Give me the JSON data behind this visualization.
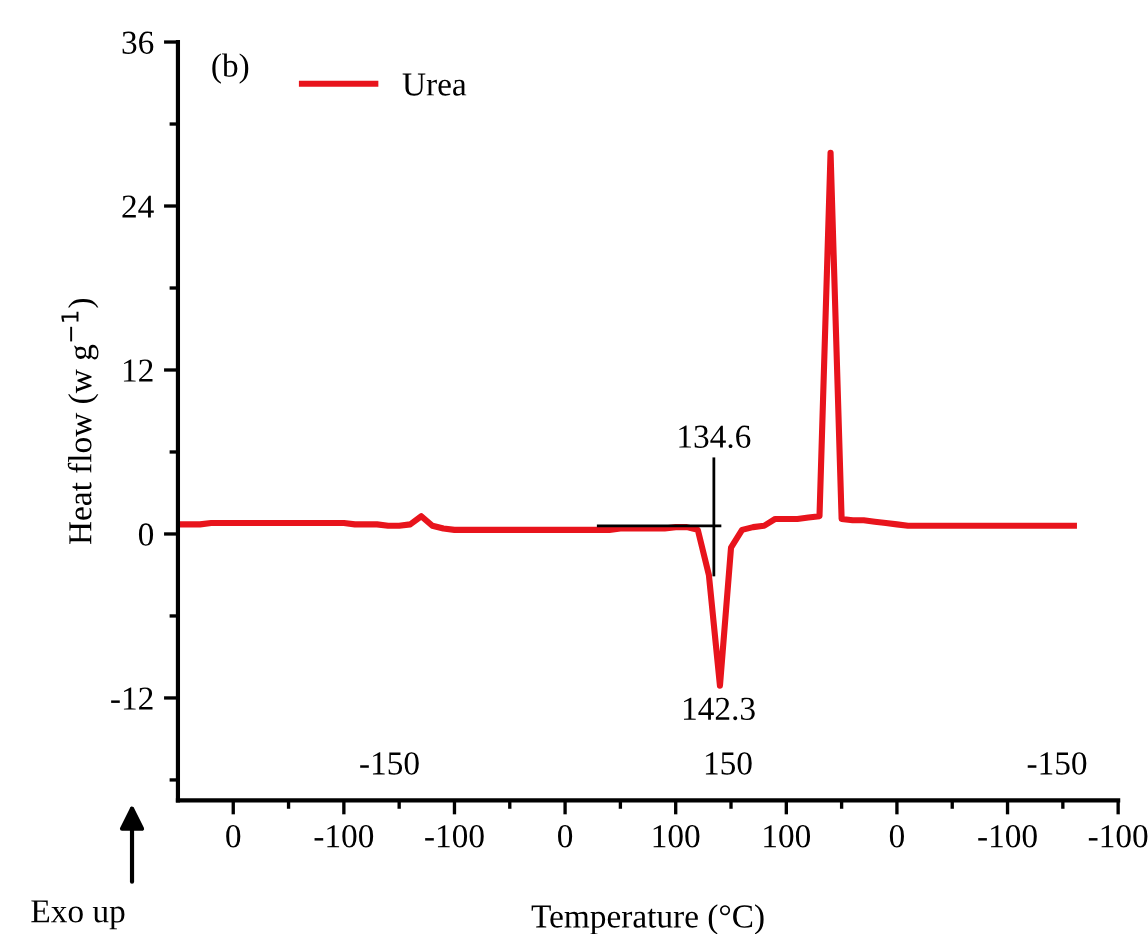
{
  "chart_data": {
    "type": "line",
    "xlabel": "Temperature (°C)",
    "ylabel": "Heat flow (w g$^{−1}$)",
    "categories": [
      null,
      null,
      null,
      null,
      null,
      "0",
      null,
      null,
      null,
      null,
      null,
      null,
      null,
      null,
      null,
      "-100",
      null,
      null,
      null,
      null,
      null,
      null,
      null,
      null,
      null,
      "-100",
      null,
      null,
      null,
      null,
      null,
      null,
      null,
      null,
      null,
      "0",
      null,
      null,
      null,
      null,
      null,
      null,
      null,
      null,
      null,
      "100",
      null,
      null,
      null,
      null,
      null,
      null,
      null,
      null,
      null,
      "100",
      null,
      null,
      null,
      null,
      null,
      null,
      null,
      null,
      null,
      "0",
      null,
      null,
      null,
      null,
      null,
      null,
      null,
      null,
      null,
      "-100",
      null,
      null,
      null,
      null,
      null,
      null,
      null,
      null,
      null,
      "-100"
    ],
    "ylim": [
      -19.5,
      36
    ],
    "yticks": [
      -12,
      0,
      12,
      24,
      36,
      {
        "value": -18,
        "label": null
      },
      {
        "value": -6,
        "label": null
      },
      {
        "value": 6,
        "label": null
      },
      {
        "value": 18,
        "label": null
      },
      {
        "value": 30,
        "label": null
      }
    ],
    "grid": false,
    "legend": "top left",
    "series": [
      {
        "name": "Urea",
        "color": "#e8141c",
        "values": [
          0.7,
          0.7,
          0.7,
          0.8,
          0.8,
          0.8,
          0.8,
          0.8,
          0.8,
          0.8,
          0.8,
          0.8,
          0.8,
          0.8,
          0.8,
          0.8,
          0.7,
          0.7,
          0.7,
          0.6,
          0.6,
          0.7,
          1.3,
          0.6,
          0.4,
          0.3,
          0.3,
          0.3,
          0.3,
          0.3,
          0.3,
          0.3,
          0.3,
          0.3,
          0.3,
          0.3,
          0.3,
          0.3,
          0.3,
          0.3,
          0.4,
          0.4,
          0.4,
          0.4,
          0.4,
          0.5,
          0.5,
          0.3,
          -3,
          -11.1,
          -1.0,
          0.3,
          0.5,
          0.6,
          1.1,
          1.1,
          1.1,
          1.2,
          1.3,
          27.9,
          1.1,
          1.0,
          1.0,
          0.9,
          0.8,
          0.7,
          0.6,
          0.6,
          0.6,
          0.6,
          0.6,
          0.6,
          0.6,
          0.6,
          0.6,
          0.6,
          0.6,
          0.6,
          0.6,
          0.6,
          0.6,
          0.6,
          null,
          null,
          null,
          null
        ]
      },
      {
        "color": "#000000",
        "values": [
          null,
          null,
          null,
          null,
          null,
          null,
          null,
          null,
          null,
          null,
          null,
          null,
          null,
          null,
          null,
          null,
          null,
          null,
          null,
          null,
          null,
          null,
          null,
          null,
          null,
          null,
          null,
          null,
          null,
          null,
          null,
          null,
          null,
          null,
          null,
          null,
          null,
          null,
          0.6,
          0.6,
          0.6,
          0.6,
          0.6,
          0.6,
          0.6,
          0.6,
          0.6,
          0.6,
          0.6,
          0.6,
          null,
          null,
          null,
          null,
          null,
          null,
          null,
          null,
          null,
          null,
          null,
          null,
          null,
          null,
          null,
          null,
          null,
          null,
          null,
          null,
          null,
          null,
          null,
          null,
          null,
          null,
          null,
          null,
          null,
          null,
          null,
          null,
          null,
          null,
          null,
          null
        ]
      }
    ],
    "annotations": [
      "(b)",
      "Exo up",
      {
        "text": "134.6",
        "y": 0.6
      },
      {
        "text": "142.3",
        "y": -11.1
      },
      "-150",
      "150",
      "-150"
    ]
  }
}
